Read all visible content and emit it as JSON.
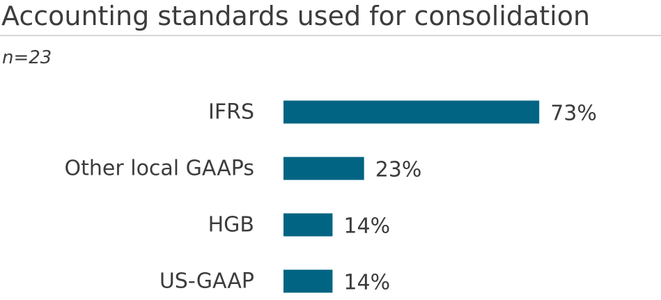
{
  "chart_data": {
    "type": "bar",
    "orientation": "horizontal",
    "title": "Accounting standards used for consolidation",
    "subtitle": "n=23",
    "categories": [
      "IFRS",
      "Other local GAAPs",
      "HGB",
      "US-GAAP"
    ],
    "values": [
      73,
      23,
      14,
      14
    ],
    "value_labels": [
      "73%",
      "23%",
      "14%",
      "14%"
    ],
    "unit": "%",
    "xlim": [
      0,
      100
    ],
    "grid": false,
    "legend": "none",
    "bar_color": "#006482"
  }
}
